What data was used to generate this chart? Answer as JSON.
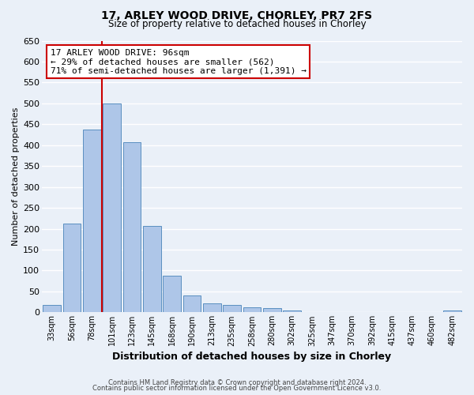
{
  "title": "17, ARLEY WOOD DRIVE, CHORLEY, PR7 2FS",
  "subtitle": "Size of property relative to detached houses in Chorley",
  "xlabel": "Distribution of detached houses by size in Chorley",
  "ylabel": "Number of detached properties",
  "footnote1": "Contains HM Land Registry data © Crown copyright and database right 2024.",
  "footnote2": "Contains public sector information licensed under the Open Government Licence v3.0.",
  "bar_labels": [
    "33sqm",
    "56sqm",
    "78sqm",
    "101sqm",
    "123sqm",
    "145sqm",
    "168sqm",
    "190sqm",
    "213sqm",
    "235sqm",
    "258sqm",
    "280sqm",
    "302sqm",
    "325sqm",
    "347sqm",
    "370sqm",
    "392sqm",
    "415sqm",
    "437sqm",
    "460sqm",
    "482sqm"
  ],
  "bar_values": [
    18,
    213,
    438,
    500,
    408,
    207,
    87,
    40,
    22,
    18,
    13,
    10,
    5,
    0,
    0,
    0,
    0,
    0,
    0,
    0,
    5
  ],
  "bar_color": "#aec6e8",
  "bar_edge_color": "#5a8fc0",
  "background_color": "#eaf0f8",
  "grid_color": "#ffffff",
  "vline_index": 3,
  "vline_color": "#cc0000",
  "annotation_title": "17 ARLEY WOOD DRIVE: 96sqm",
  "annotation_line2": "← 29% of detached houses are smaller (562)",
  "annotation_line3": "71% of semi-detached houses are larger (1,391) →",
  "annotation_box_facecolor": "#ffffff",
  "annotation_box_edgecolor": "#cc0000",
  "ylim": [
    0,
    650
  ],
  "yticks": [
    0,
    50,
    100,
    150,
    200,
    250,
    300,
    350,
    400,
    450,
    500,
    550,
    600,
    650
  ]
}
